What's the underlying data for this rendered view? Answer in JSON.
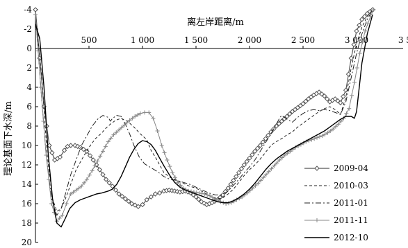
{
  "chart_data": {
    "type": "line",
    "xlabel": "离左岸距离/m",
    "ylabel": "理论基面下水深/m",
    "xlim": [
      0,
      3500
    ],
    "ylim": [
      -4,
      20
    ],
    "y_inverted": true,
    "x_axis_position": "top",
    "x_ticks": [
      500,
      1000,
      1500,
      2000,
      2500,
      3000,
      3500
    ],
    "x_tick_labels": [
      "500",
      "1 000",
      "1 500",
      "2 000",
      "2 500",
      "3 000",
      "3 500"
    ],
    "y_ticks": [
      -4,
      -2,
      0,
      2,
      4,
      6,
      8,
      10,
      12,
      14,
      16,
      18,
      20
    ],
    "y_tick_labels": [
      "-4",
      "-2",
      "0",
      "2",
      "4",
      "6",
      "8",
      "10",
      "12",
      "14",
      "16",
      "18",
      "20"
    ],
    "grid": false,
    "legend_position": "bottom-right",
    "series": [
      {
        "name": "2009-04",
        "style": "solid-diamond",
        "color": "#555555",
        "x": [
          0,
          40,
          80,
          130,
          180,
          230,
          270,
          300,
          330,
          370,
          420,
          480,
          540,
          600,
          660,
          720,
          780,
          840,
          900,
          960,
          1000,
          1040,
          1080,
          1120,
          1160,
          1200,
          1250,
          1300,
          1350,
          1400,
          1450,
          1500,
          1550,
          1600,
          1650,
          1700,
          1750,
          1800,
          1850,
          1900,
          1950,
          2000,
          2050,
          2100,
          2150,
          2200,
          2250,
          2300,
          2350,
          2400,
          2450,
          2500,
          2550,
          2600,
          2650,
          2700,
          2750,
          2800,
          2850,
          2900,
          2950,
          3000,
          3050,
          3100,
          3150
        ],
        "y": [
          -4,
          1,
          6,
          10,
          11.5,
          11.2,
          10.5,
          10.1,
          10,
          10,
          10.2,
          10.6,
          11.5,
          12.5,
          13.5,
          14.2,
          15,
          15.5,
          16,
          16.3,
          16.1,
          15.6,
          15.3,
          15,
          14.9,
          14.7,
          14.6,
          14.7,
          14.8,
          14.7,
          14.9,
          15.3,
          15.8,
          16.1,
          15.9,
          15.6,
          15.1,
          14.4,
          13.6,
          12.8,
          12,
          11.3,
          10.6,
          10,
          9.3,
          8.6,
          8,
          7.5,
          7,
          6.5,
          6.1,
          5.7,
          5.2,
          4.8,
          4.5,
          4.9,
          5.5,
          5.2,
          5.6,
          4.3,
          1,
          -1.8,
          -3,
          -3.6,
          -4
        ]
      },
      {
        "name": "2010-03",
        "style": "dashed",
        "color": "#222222",
        "x": [
          0,
          60,
          110,
          160,
          200,
          240,
          280,
          330,
          380,
          440,
          500,
          560,
          620,
          660,
          700,
          750,
          800,
          860,
          920,
          980,
          1040,
          1080,
          1120,
          1160,
          1200,
          1260,
          1320,
          1380,
          1440,
          1500,
          1550,
          1600,
          1650,
          1700,
          1750,
          1800,
          1850,
          1900,
          1950,
          2000,
          2050,
          2100,
          2150,
          2200,
          2250,
          2300,
          2350,
          2400,
          2450,
          2500,
          2550,
          2600,
          2650,
          2700,
          2750,
          2800,
          2850,
          2900,
          2950,
          3000,
          3050,
          3100,
          3150
        ],
        "y": [
          -3.5,
          3,
          11,
          15.5,
          16.8,
          16.5,
          15.5,
          14,
          12.5,
          11.3,
          10.2,
          9.3,
          8.7,
          8.2,
          7.8,
          7.4,
          7.2,
          7.5,
          8.1,
          8.8,
          9.4,
          10.5,
          11.2,
          12,
          12.8,
          13.3,
          13.6,
          13.9,
          14.2,
          14.4,
          14.7,
          15,
          15.3,
          15.5,
          15.4,
          15,
          14.5,
          13.8,
          13.1,
          12.5,
          12,
          11.4,
          10.7,
          10,
          9.6,
          9.3,
          8.9,
          8.6,
          8.1,
          7.7,
          7.3,
          6.9,
          6.5,
          6.2,
          6,
          6.3,
          6.8,
          5,
          2,
          -0.5,
          -2.2,
          -3.3,
          -4
        ]
      },
      {
        "name": "2011-01",
        "style": "dash-dot",
        "color": "#222222",
        "x": [
          0,
          50,
          100,
          150,
          200,
          240,
          280,
          330,
          380,
          430,
          480,
          530,
          580,
          630,
          680,
          700,
          720,
          760,
          800,
          840,
          880,
          920,
          970,
          1020,
          1080,
          1140,
          1200,
          1260,
          1320,
          1380,
          1440,
          1500,
          1560,
          1620,
          1680,
          1740,
          1800,
          1850,
          1900,
          1950,
          2000,
          2050,
          2100,
          2150,
          2200,
          2250,
          2280,
          2300,
          2350,
          2400,
          2450,
          2500,
          2550,
          2600,
          2650,
          2700,
          2750,
          2800,
          2850,
          2900,
          2950,
          3000,
          3050,
          3100,
          3150
        ],
        "y": [
          -3.5,
          4,
          11,
          15.5,
          17.2,
          16.5,
          15,
          13,
          11.5,
          10,
          9,
          8,
          7.3,
          6.9,
          7.1,
          7.5,
          7.2,
          6.9,
          7,
          7.8,
          8.8,
          10,
          11.2,
          11.9,
          12.3,
          12.7,
          13.2,
          13.5,
          13.6,
          13.8,
          14,
          14.3,
          14.6,
          14.9,
          15.1,
          15.1,
          14.7,
          14.1,
          13.5,
          12.8,
          12.2,
          11.5,
          10.6,
          9.7,
          8.8,
          7.8,
          7.2,
          6.9,
          7.3,
          7.6,
          7.1,
          6.7,
          6.4,
          6.3,
          6.4,
          6.3,
          6.4,
          6.6,
          6.8,
          5.5,
          3,
          0.5,
          -1.5,
          -3,
          -4
        ]
      },
      {
        "name": "2011-11",
        "style": "solid-plus",
        "color": "#888888",
        "x": [
          0,
          50,
          100,
          150,
          200,
          250,
          290,
          330,
          380,
          430,
          480,
          530,
          580,
          630,
          680,
          730,
          780,
          830,
          880,
          930,
          980,
          1020,
          1060,
          1100,
          1140,
          1180,
          1230,
          1280,
          1330,
          1380,
          1430,
          1480,
          1530,
          1580,
          1630,
          1680,
          1730,
          1780,
          1830,
          1880,
          1930,
          1980,
          2030,
          2080,
          2130,
          2180,
          2230,
          2280,
          2330,
          2380,
          2430,
          2480,
          2530,
          2580,
          2630,
          2680,
          2730,
          2780,
          2830,
          2880,
          2930,
          2980,
          3030,
          3080,
          3130,
          3160
        ],
        "y": [
          -3.5,
          4,
          11,
          16,
          17.8,
          17.2,
          16,
          15,
          14.6,
          14.2,
          13.5,
          12.6,
          11.6,
          10.6,
          9.6,
          8.9,
          8.4,
          7.9,
          7.4,
          7,
          6.7,
          6.6,
          6.6,
          7.2,
          8.5,
          10,
          11.5,
          12.8,
          13.8,
          14.4,
          14.7,
          14.8,
          14.9,
          15,
          15.2,
          15.5,
          15.8,
          16,
          15.9,
          15.6,
          15.3,
          14.9,
          14.4,
          13.9,
          13.3,
          12.7,
          12.1,
          11.5,
          11,
          10.6,
          10.2,
          9.9,
          9.6,
          9.4,
          9.2,
          9,
          8.7,
          8.3,
          7.8,
          7.2,
          6.2,
          3.5,
          0.5,
          -1.8,
          -3.3,
          -4
        ]
      },
      {
        "name": "2012-10",
        "style": "solid",
        "color": "#000000",
        "x": [
          0,
          40,
          80,
          120,
          160,
          200,
          240,
          280,
          320,
          370,
          420,
          470,
          520,
          570,
          620,
          650,
          680,
          720,
          760,
          800,
          840,
          880,
          920,
          960,
          1000,
          1040,
          1080,
          1120,
          1160,
          1200,
          1250,
          1300,
          1350,
          1400,
          1450,
          1500,
          1550,
          1600,
          1650,
          1700,
          1750,
          1800,
          1850,
          1900,
          1950,
          2000,
          2050,
          2100,
          2150,
          2200,
          2250,
          2300,
          2350,
          2400,
          2450,
          2500,
          2550,
          2600,
          2650,
          2700,
          2750,
          2800,
          2850,
          2900,
          2950,
          2980,
          3000,
          3020,
          3050,
          3100,
          3150
        ],
        "y": [
          -2.5,
          -1,
          4,
          11,
          15.5,
          18,
          18.4,
          17.5,
          16.5,
          15.9,
          15.6,
          15.4,
          15.2,
          15,
          14.9,
          14.8,
          14.7,
          14.5,
          14,
          13.2,
          12.2,
          11.2,
          10.4,
          9.8,
          9.5,
          9.6,
          9.9,
          10.5,
          11.3,
          12.1,
          13,
          13.8,
          14.3,
          14.6,
          14.8,
          15,
          15.2,
          15.4,
          15.6,
          15.8,
          15.9,
          15.9,
          15.7,
          15.4,
          15,
          14.5,
          13.9,
          13.2,
          12.5,
          11.9,
          11.4,
          11,
          10.6,
          10.3,
          10,
          9.7,
          9.4,
          9.1,
          8.8,
          8.5,
          8.1,
          7.7,
          7.3,
          7,
          7,
          7.2,
          6.5,
          4.5,
          1.5,
          -1.5,
          -3.5
        ]
      }
    ]
  }
}
